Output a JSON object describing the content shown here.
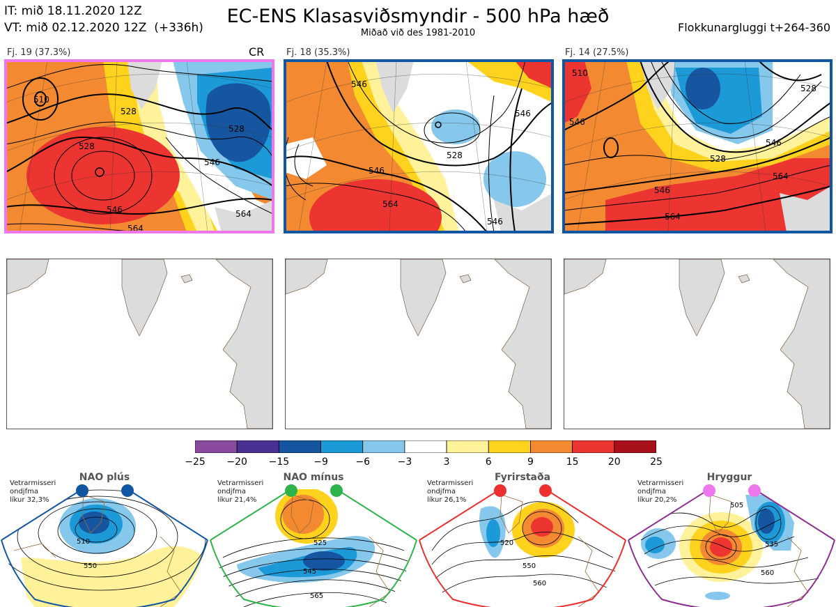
{
  "header": {
    "it_line": "IT: mið 18.11.2020 12Z",
    "vt_line": "VT: mið 02.12.2020 12Z  (+336h)",
    "title": "EC-ENS Klasasviðsmyndir - 500 hPa hæð",
    "subtitle": "Miðað við des 1981-2010",
    "window": "Flokkunargluggi t+264-360"
  },
  "clusters": [
    {
      "label": "Fj. 19 (37.3%)",
      "tag": "CR",
      "frame_color": "#ee77ee",
      "contour_labels": [
        "510",
        "528",
        "528",
        "528",
        "546",
        "546",
        "564",
        "564"
      ]
    },
    {
      "label": "Fj. 18 (35.3%)",
      "tag": "",
      "frame_color": "#1156a3",
      "contour_labels": [
        "546",
        "528",
        "546",
        "546",
        "564",
        "546"
      ]
    },
    {
      "label": "Fj. 14 (27.5%)",
      "tag": "",
      "frame_color": "#1156a3",
      "contour_labels": [
        "510",
        "546",
        "528",
        "546",
        "564",
        "546",
        "564",
        "528"
      ]
    }
  ],
  "colorbar": {
    "ticks": [
      "−25",
      "−20",
      "−15",
      "−9",
      "−6",
      "−3",
      "3",
      "6",
      "9",
      "15",
      "20",
      "25"
    ],
    "colors": [
      "#8a4b9e",
      "#4a3191",
      "#1655a0",
      "#1c9ad8",
      "#86c8ec",
      "#ffffff",
      "#fff29a",
      "#ffd31d",
      "#f38a32",
      "#ec3431",
      "#a8101a"
    ]
  },
  "regimes": [
    {
      "title": "NAO plús",
      "info": [
        "Vetrarmisseri",
        "ondjfma",
        "líkur 32,3%"
      ],
      "dot_color": "#1156a3",
      "frame_color": "#1156a3",
      "contour_labels": [
        "510",
        "550"
      ]
    },
    {
      "title": "NAO mínus",
      "info": [
        "Vetrarmisseri",
        "ondjfma",
        "líkur 21,4%"
      ],
      "dot_color": "#2eb24a",
      "frame_color": "#2eb24a",
      "contour_labels": [
        "525",
        "545",
        "565"
      ]
    },
    {
      "title": "Fyrirstaða",
      "info": [
        "Vetrarmisseri",
        "ondjfma",
        "líkur 26,1%"
      ],
      "dot_color": "#ec2f2f",
      "frame_color": "#ec2f2f",
      "contour_labels": [
        "520",
        "550",
        "560"
      ]
    },
    {
      "title": "Hryggur",
      "info": [
        "Vetrarmisseri",
        "ondjfma",
        "líkur 20,2%"
      ],
      "dot_color": "#ee77ee",
      "frame_color": "#8b2e8e",
      "contour_labels": [
        "505",
        "535",
        "560"
      ]
    }
  ]
}
